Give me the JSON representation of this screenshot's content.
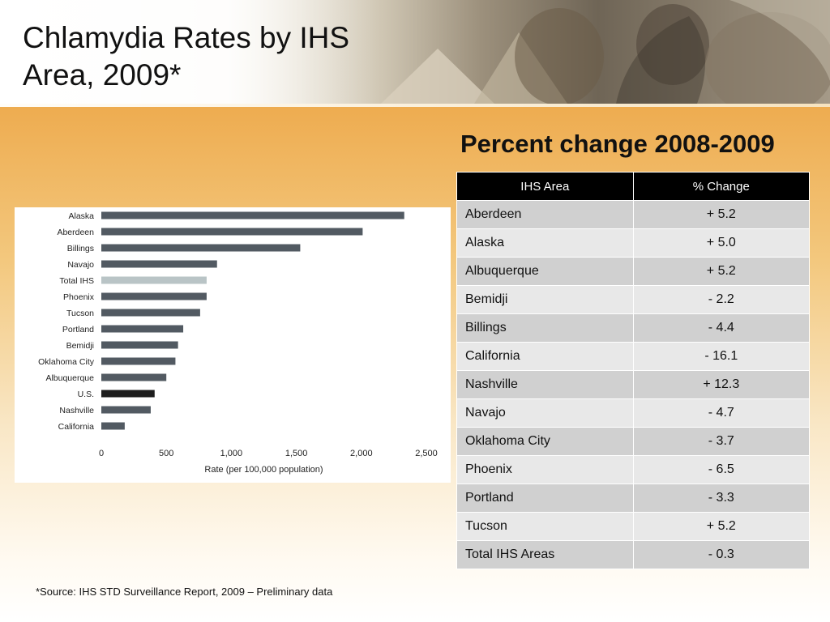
{
  "slide": {
    "title": "Chlamydia Rates by IHS Area, 2009*",
    "source_note": "*Source: IHS STD Surveillance Report, 2009 – Preliminary data"
  },
  "chart_data": {
    "type": "bar",
    "orientation": "horizontal",
    "categories": [
      "Alaska",
      "Aberdeen",
      "Billings",
      "Navajo",
      "Total IHS",
      "Phoenix",
      "Tucson",
      "Portland",
      "Bemidji",
      "Oklahoma City",
      "Albuquerque",
      "U.S.",
      "Nashville",
      "California"
    ],
    "values": [
      2330,
      2010,
      1530,
      890,
      810,
      810,
      760,
      630,
      590,
      570,
      500,
      410,
      380,
      180
    ],
    "highlight": {
      "Total IHS": "#b9c4c6",
      "U.S.": "#1e1e1e"
    },
    "bar_color": "#525a62",
    "xlabel": "Rate (per 100,000 population)",
    "xlim": [
      0,
      2500
    ],
    "xticks": [
      0,
      500,
      1000,
      1500,
      2000,
      2500
    ],
    "xtick_labels": [
      "0",
      "500",
      "1,000",
      "1,500",
      "2,000",
      "2,500"
    ],
    "grid": false
  },
  "table": {
    "title": "Percent change 2008-2009",
    "headers": [
      "IHS Area",
      "% Change"
    ],
    "rows": [
      [
        "Aberdeen",
        "+ 5.2"
      ],
      [
        "Alaska",
        "+ 5.0"
      ],
      [
        "Albuquerque",
        "+ 5.2"
      ],
      [
        "Bemidji",
        "- 2.2"
      ],
      [
        "Billings",
        "- 4.4"
      ],
      [
        "California",
        "- 16.1"
      ],
      [
        "Nashville",
        "+ 12.3"
      ],
      [
        "Navajo",
        "- 4.7"
      ],
      [
        "Oklahoma City",
        "- 3.7"
      ],
      [
        "Phoenix",
        "- 6.5"
      ],
      [
        "Portland",
        "- 3.3"
      ],
      [
        "Tucson",
        "+ 5.2"
      ],
      [
        "Total IHS Areas",
        "- 0.3"
      ]
    ]
  }
}
